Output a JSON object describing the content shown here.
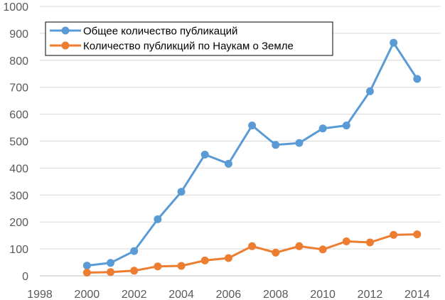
{
  "chart_data": {
    "type": "line",
    "title": "",
    "xlabel": "",
    "ylabel": "",
    "xlim": [
      1998,
      2015
    ],
    "ylim": [
      0,
      1000
    ],
    "x_ticks": [
      1998,
      2000,
      2002,
      2004,
      2006,
      2008,
      2010,
      2012,
      2014
    ],
    "y_ticks": [
      0,
      100,
      200,
      300,
      400,
      500,
      600,
      700,
      800,
      900,
      1000
    ],
    "grid": "horizontal",
    "legend_position": "top-left",
    "x": [
      2000,
      2001,
      2002,
      2003,
      2004,
      2005,
      2006,
      2007,
      2008,
      2009,
      2010,
      2011,
      2012,
      2013,
      2014
    ],
    "series": [
      {
        "name": "Общее количество публикаций",
        "color": "#5b9bd5",
        "values": [
          38,
          48,
          92,
          210,
          312,
          450,
          416,
          558,
          486,
          493,
          547,
          558,
          685,
          865,
          731
        ]
      },
      {
        "name": "Количество публикций  по Наукам о Земле",
        "color": "#ed7d31",
        "values": [
          12,
          14,
          19,
          35,
          37,
          57,
          66,
          110,
          86,
          110,
          98,
          128,
          124,
          152,
          154
        ]
      }
    ]
  }
}
